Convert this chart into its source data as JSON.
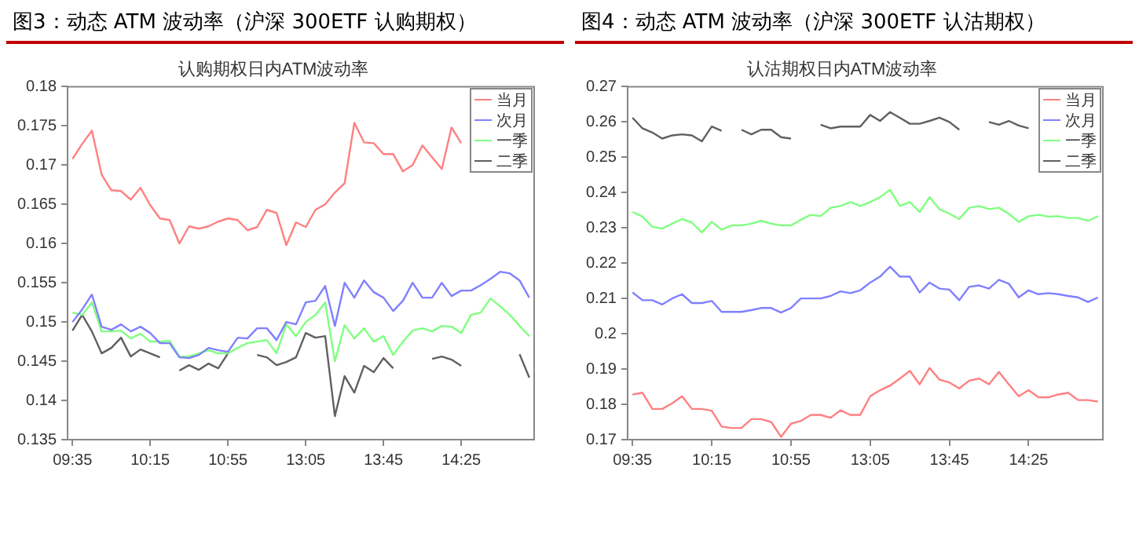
{
  "chart_data": [
    {
      "type": "line",
      "title": "图3：动态 ATM 波动率（沪深 300ETF 认购期权）",
      "subtitle": "认购期权日内ATM波动率",
      "categories": [
        "09:35",
        null,
        null,
        null,
        null,
        null,
        null,
        null,
        "10:15",
        null,
        null,
        null,
        null,
        null,
        null,
        null,
        "10:55",
        null,
        null,
        null,
        null,
        null,
        null,
        null,
        "13:05",
        null,
        null,
        null,
        null,
        null,
        null,
        null,
        "13:45",
        null,
        null,
        null,
        null,
        null,
        null,
        null,
        "14:25",
        null,
        null,
        null,
        null,
        null,
        null,
        null
      ],
      "series": [
        {
          "name": "当月",
          "color": "#ff8080",
          "values": [
            0.1708,
            0.1727,
            0.1744,
            0.1688,
            0.1668,
            0.1667,
            0.1656,
            0.1671,
            0.1649,
            0.1632,
            0.163,
            0.16,
            0.1622,
            0.1619,
            0.1622,
            0.1628,
            0.1632,
            0.163,
            0.1617,
            0.1621,
            0.1643,
            0.1639,
            0.1598,
            0.1627,
            0.1621,
            0.1643,
            0.165,
            0.1665,
            0.1677,
            0.1754,
            0.1729,
            0.1728,
            0.1714,
            0.1714,
            0.1692,
            0.17,
            0.1725,
            0.171,
            0.1695,
            0.1748,
            0.1728,
            null,
            null,
            null,
            null,
            null,
            null,
            null
          ]
        },
        {
          "name": "次月",
          "color": "#8080ff",
          "values": [
            0.15,
            0.1516,
            0.1535,
            0.1494,
            0.149,
            0.1497,
            0.1488,
            0.1494,
            0.1486,
            0.1473,
            0.1473,
            0.1455,
            0.1454,
            0.1458,
            0.1467,
            0.1464,
            0.1462,
            0.148,
            0.1479,
            0.1492,
            0.1492,
            0.1477,
            0.15,
            0.1497,
            0.1525,
            0.1527,
            0.1546,
            0.1495,
            0.155,
            0.1531,
            0.1553,
            0.1538,
            0.1531,
            0.1514,
            0.1527,
            0.155,
            0.1531,
            0.1531,
            0.155,
            0.1533,
            0.154,
            0.154,
            0.1547,
            0.1555,
            0.1564,
            0.1562,
            0.1553,
            0.1531
          ]
        },
        {
          "name": "一季",
          "color": "#80ff80",
          "values": [
            0.1512,
            0.1509,
            0.1525,
            0.1488,
            0.1488,
            0.1489,
            0.1479,
            0.1485,
            0.1475,
            0.1475,
            0.1476,
            0.1456,
            0.1456,
            0.146,
            0.1464,
            0.146,
            0.146,
            0.1467,
            0.1473,
            0.1475,
            0.1477,
            0.146,
            0.1497,
            0.1482,
            0.15,
            0.1509,
            0.1525,
            0.145,
            0.1496,
            0.1479,
            0.1492,
            0.1475,
            0.1482,
            0.1458,
            0.1475,
            0.1489,
            0.1492,
            0.1488,
            0.1495,
            0.1494,
            0.1486,
            0.1509,
            0.1512,
            0.153,
            0.152,
            0.1509,
            0.1495,
            0.1482
          ]
        },
        {
          "name": "二季",
          "color": "#606060",
          "values": [
            0.1489,
            0.1509,
            0.1488,
            0.146,
            0.1467,
            0.148,
            0.1456,
            0.1465,
            0.146,
            0.1455,
            null,
            0.1438,
            0.1445,
            0.1439,
            0.1447,
            0.1441,
            0.146,
            null,
            null,
            0.1458,
            0.1455,
            0.1445,
            0.1449,
            0.1455,
            0.1486,
            0.148,
            0.1482,
            0.138,
            0.1431,
            0.141,
            0.1444,
            0.1436,
            0.1454,
            0.1441,
            null,
            null,
            null,
            0.1453,
            0.1456,
            0.1452,
            0.1444,
            null,
            null,
            null,
            null,
            null,
            0.1459,
            0.1429
          ]
        }
      ],
      "ylim": [
        0.135,
        0.18
      ],
      "yticks": [
        0.135,
        0.14,
        0.145,
        0.15,
        0.155,
        0.16,
        0.165,
        0.17,
        0.175,
        0.18
      ],
      "grid": false,
      "legend": "top right"
    },
    {
      "type": "line",
      "title": "图4：动态 ATM 波动率（沪深 300ETF 认沽期权）",
      "subtitle": "认沽期权日内ATM波动率",
      "categories": [
        "09:35",
        null,
        null,
        null,
        null,
        null,
        null,
        null,
        "10:15",
        null,
        null,
        null,
        null,
        null,
        null,
        null,
        "10:55",
        null,
        null,
        null,
        null,
        null,
        null,
        null,
        "13:05",
        null,
        null,
        null,
        null,
        null,
        null,
        null,
        "13:45",
        null,
        null,
        null,
        null,
        null,
        null,
        null,
        "14:25",
        null,
        null,
        null,
        null,
        null,
        null,
        null
      ],
      "series": [
        {
          "name": "当月",
          "color": "#ff8080",
          "values": [
            0.1828,
            0.1833,
            0.1787,
            0.1787,
            0.1803,
            0.1823,
            0.1787,
            0.1787,
            0.1782,
            0.1737,
            0.1733,
            0.1733,
            0.1758,
            0.1758,
            0.175,
            0.1708,
            0.1745,
            0.1753,
            0.177,
            0.177,
            0.1762,
            0.1783,
            0.177,
            0.177,
            0.1823,
            0.184,
            0.1853,
            0.1873,
            0.1895,
            0.1857,
            0.1903,
            0.187,
            0.1862,
            0.1845,
            0.1867,
            0.1873,
            0.1857,
            0.1892,
            0.1857,
            0.1823,
            0.184,
            0.182,
            0.182,
            0.1828,
            0.1833,
            0.1812,
            0.1812,
            0.1808
          ]
        },
        {
          "name": "次月",
          "color": "#8080ff",
          "values": [
            0.2117,
            0.2095,
            0.2095,
            0.2083,
            0.21,
            0.2112,
            0.2087,
            0.2087,
            0.2093,
            0.2062,
            0.2062,
            0.2062,
            0.2067,
            0.2073,
            0.2073,
            0.206,
            0.2073,
            0.21,
            0.21,
            0.21,
            0.2107,
            0.212,
            0.2115,
            0.2123,
            0.2145,
            0.2162,
            0.219,
            0.2162,
            0.2162,
            0.2117,
            0.2145,
            0.2128,
            0.2125,
            0.2095,
            0.2133,
            0.2137,
            0.2128,
            0.2153,
            0.2142,
            0.2103,
            0.2123,
            0.2112,
            0.2115,
            0.2112,
            0.2107,
            0.2103,
            0.209,
            0.2103
          ]
        },
        {
          "name": "一季",
          "color": "#80ff80",
          "values": [
            0.2345,
            0.2332,
            0.2303,
            0.2298,
            0.2312,
            0.2325,
            0.2315,
            0.2287,
            0.2317,
            0.2295,
            0.2307,
            0.2307,
            0.2312,
            0.232,
            0.2312,
            0.2307,
            0.2307,
            0.2323,
            0.2337,
            0.2333,
            0.2357,
            0.2362,
            0.2373,
            0.2362,
            0.2373,
            0.2387,
            0.2408,
            0.2362,
            0.2373,
            0.2345,
            0.2387,
            0.2353,
            0.234,
            0.2325,
            0.2357,
            0.2362,
            0.2353,
            0.2357,
            0.234,
            0.2317,
            0.2333,
            0.2337,
            0.2332,
            0.2333,
            0.2328,
            0.2328,
            0.232,
            0.2333
          ]
        },
        {
          "name": "二季",
          "color": "#606060",
          "values": [
            0.2612,
            0.2582,
            0.257,
            0.2553,
            0.2562,
            0.2565,
            0.2562,
            0.2545,
            0.2587,
            0.2575,
            null,
            0.2578,
            0.2565,
            0.2578,
            0.2578,
            0.2557,
            0.2553,
            null,
            null,
            0.2592,
            0.2582,
            0.2587,
            0.2587,
            0.2587,
            0.262,
            0.2603,
            0.2628,
            0.2612,
            0.2595,
            0.2595,
            0.2603,
            0.2612,
            0.26,
            0.2578,
            null,
            null,
            0.26,
            0.2592,
            0.2603,
            0.259,
            0.2582,
            null,
            null,
            null,
            null,
            null,
            null,
            null
          ]
        }
      ],
      "ylim": [
        0.17,
        0.27
      ],
      "yticks": [
        0.17,
        0.18,
        0.19,
        0.2,
        0.21,
        0.22,
        0.23,
        0.24,
        0.25,
        0.26,
        0.27
      ],
      "grid": false,
      "legend": "top right"
    }
  ]
}
